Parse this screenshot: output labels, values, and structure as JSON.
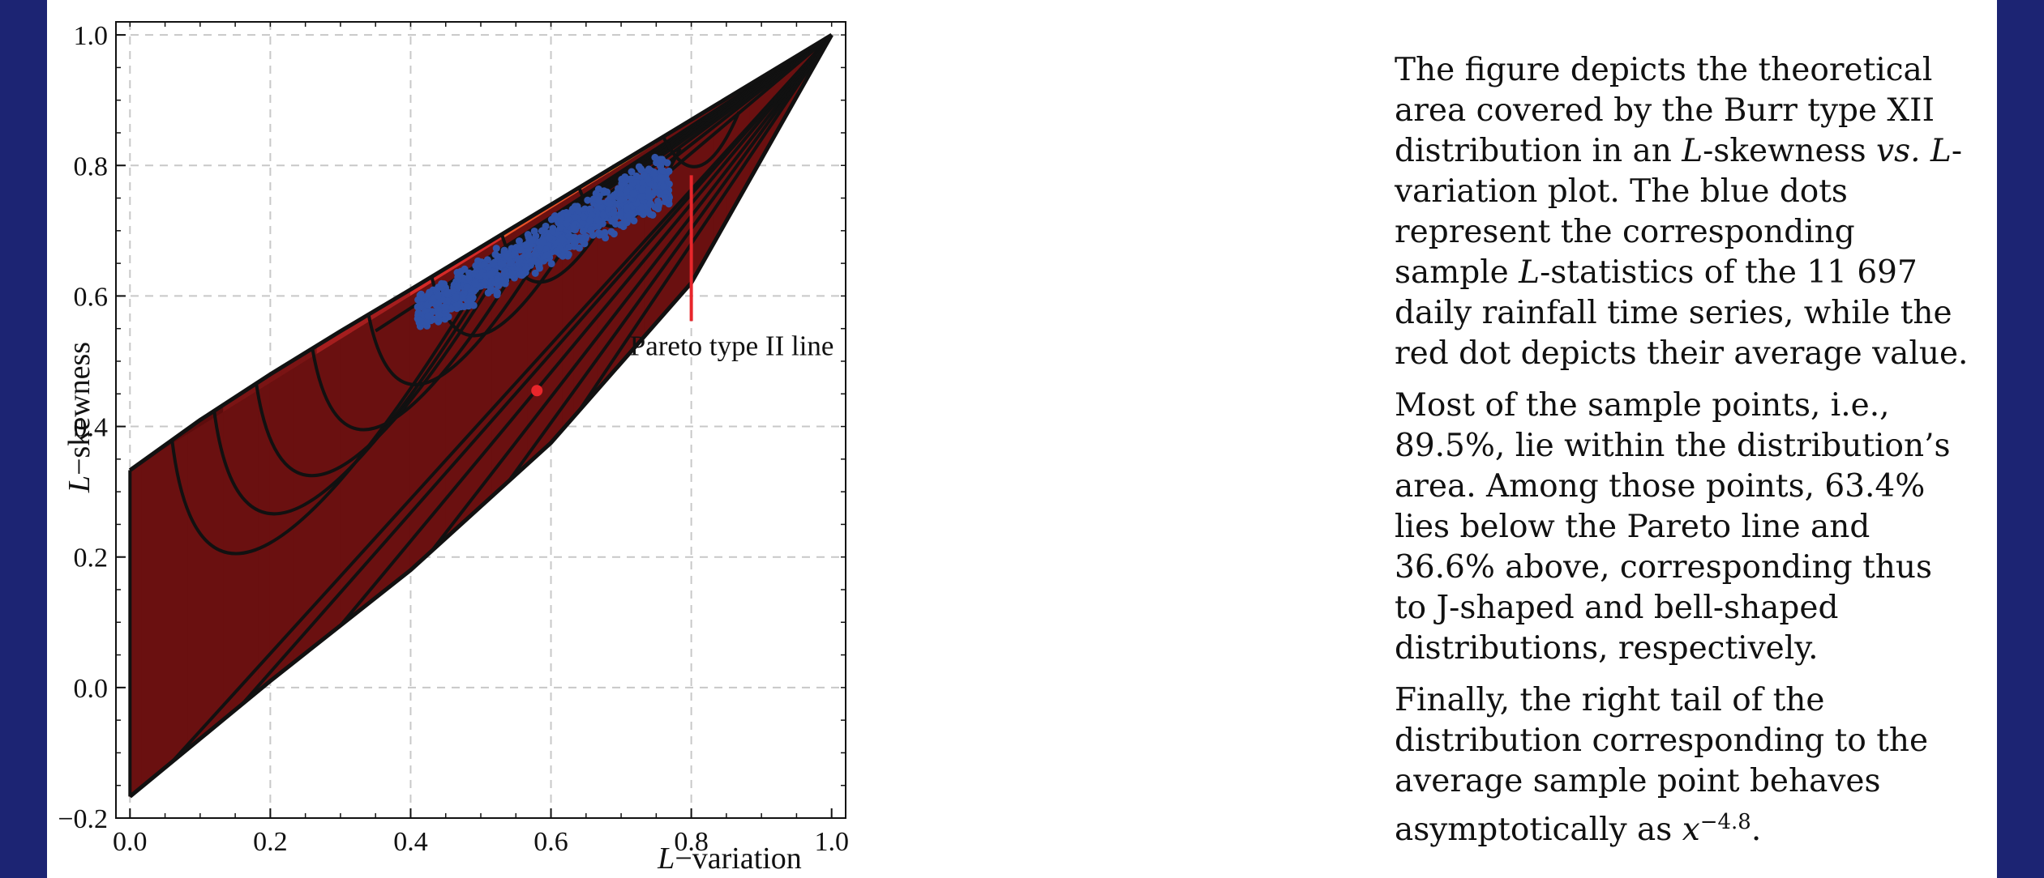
{
  "chart_data": {
    "type": "scatter",
    "xlabel_italic": "L",
    "xlabel_rest": "−variation",
    "ylabel_italic": "L",
    "ylabel_rest": "−skewness",
    "xlim": [
      -0.02,
      1.02
    ],
    "ylim": [
      -0.2,
      1.02
    ],
    "xticks": [
      "0.0",
      "0.2",
      "0.4",
      "0.6",
      "0.8",
      "1.0"
    ],
    "yticks": [
      "−0.2",
      "0.0",
      "0.2",
      "0.4",
      "0.6",
      "0.8",
      "1.0"
    ],
    "grid": true,
    "region": {
      "upper_boundary": [
        [
          0.0,
          0.333
        ],
        [
          0.1,
          0.41
        ],
        [
          0.2,
          0.48
        ],
        [
          0.3,
          0.546
        ],
        [
          0.4,
          0.61
        ],
        [
          0.5,
          0.675
        ],
        [
          0.6,
          0.74
        ],
        [
          0.7,
          0.805
        ],
        [
          0.8,
          0.87
        ],
        [
          0.9,
          0.935
        ],
        [
          1.0,
          1.0
        ]
      ],
      "lower_boundary": [
        [
          0.0,
          -0.167
        ],
        [
          0.2,
          0.01
        ],
        [
          0.4,
          0.18
        ],
        [
          0.6,
          0.375
        ],
        [
          0.8,
          0.62
        ],
        [
          1.0,
          1.0
        ]
      ]
    },
    "pareto_line": [
      [
        0.0,
        0.333
      ],
      [
        1.0,
        1.0
      ]
    ],
    "sample_point_count": 11697,
    "average_point": {
      "x": 0.58,
      "y": 0.455,
      "color": "#e8262b"
    },
    "sample_color": "#3053a8",
    "annotation": {
      "text": "Pareto type II line",
      "x": 0.8,
      "y": 0.785,
      "color": "#e8262b"
    },
    "color_ramp": [
      "#5c0c0c",
      "#7a1414",
      "#a51e1e",
      "#d42a27",
      "#ea5227",
      "#f28a1f",
      "#f8b515",
      "#fad213"
    ]
  },
  "description": {
    "p1": [
      {
        "t": "The figure depicts the theoretical area covered by the Burr type XII distribution in an "
      },
      {
        "t": "L",
        "i": true
      },
      {
        "t": "-skewness "
      },
      {
        "t": "vs.",
        "i": true
      },
      {
        "t": " "
      },
      {
        "t": "L",
        "i": true
      },
      {
        "t": "-variation plot. The blue dots represent the corresponding sample "
      },
      {
        "t": "L",
        "i": true
      },
      {
        "t": "-statistics of the 11 697 daily rainfall time series, while the red dot depicts their average value."
      }
    ],
    "p2": "Most of the sample points, i.e., 89.5%, lie within the distribution’s area. Among those points, 63.4% lies below the Pareto line and 36.6% above, corresponding  thus to J-shaped and bell-shaped distributions, respectively.",
    "p3_text": "Finally, the right tail of the distribution corresponding to the average sample point behaves asymptotically as ",
    "p3_var": "x",
    "p3_exp": "−4.8",
    "p3_end": "."
  }
}
